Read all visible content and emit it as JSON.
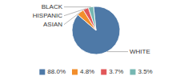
{
  "chart_data": {
    "type": "pie",
    "categories": [
      "WHITE",
      "ASIAN",
      "HISPANIC",
      "BLACK"
    ],
    "values": [
      88.0,
      4.8,
      3.7,
      3.5
    ],
    "value_labels": [
      "88.0%",
      "4.8%",
      "3.7%",
      "3.5%"
    ],
    "legend": "bottom"
  }
}
